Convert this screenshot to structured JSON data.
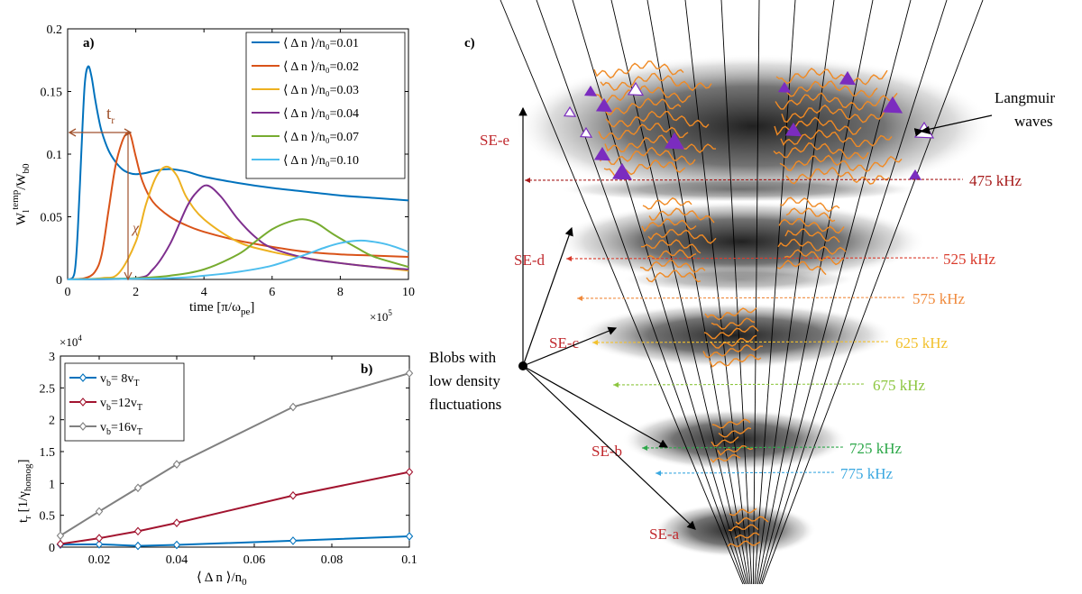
{
  "chart_data": [
    {
      "panel_label": "a)",
      "type": "line",
      "xlabel": "time [π/ω",
      "xlabel_sub": "pe",
      "xlabel_close": "]",
      "x_multiplier": "×10",
      "x_multiplier_exp": "5",
      "ylabel_main": "W",
      "ylabel_sub": "l",
      "ylabel_sup": "temp",
      "ylabel_den": "/W",
      "ylabel_den_sub": "b0",
      "xlim": [
        0,
        10
      ],
      "ylim": [
        0,
        0.2
      ],
      "xticks": [
        0,
        2,
        4,
        6,
        8,
        10
      ],
      "yticks": [
        0,
        0.05,
        0.1,
        0.15,
        0.2
      ],
      "ytick_labels": [
        "0",
        "0.05",
        "0.1",
        "0.15",
        "0.2"
      ],
      "annotation_tr": "t",
      "annotation_tr_sub": "r",
      "annotation_chi": "χ",
      "series": [
        {
          "name": "⟨ Δ n ⟩/n₀=0.01",
          "color": "#0072BD",
          "x": [
            0,
            0.2,
            0.3,
            0.4,
            0.5,
            0.6,
            0.7,
            0.8,
            0.9,
            1.0,
            1.2,
            1.4,
            1.6,
            1.8,
            2.0,
            2.3,
            2.6,
            3.0,
            3.5,
            4,
            5,
            6,
            7,
            8,
            9,
            10
          ],
          "y": [
            0,
            0.005,
            0.04,
            0.1,
            0.155,
            0.17,
            0.162,
            0.145,
            0.13,
            0.118,
            0.103,
            0.094,
            0.088,
            0.085,
            0.084,
            0.085,
            0.087,
            0.088,
            0.086,
            0.082,
            0.077,
            0.073,
            0.07,
            0.067,
            0.065,
            0.063
          ]
        },
        {
          "name": "⟨ Δ n ⟩/n₀=0.02",
          "color": "#D95319",
          "x": [
            0,
            0.5,
            0.8,
            1.0,
            1.2,
            1.4,
            1.6,
            1.75,
            1.85,
            2.0,
            2.2,
            2.5,
            3,
            3.5,
            4,
            5,
            6,
            7,
            8,
            9,
            10
          ],
          "y": [
            0,
            0.001,
            0.006,
            0.02,
            0.055,
            0.09,
            0.11,
            0.117,
            0.115,
            0.098,
            0.078,
            0.062,
            0.05,
            0.043,
            0.038,
            0.031,
            0.026,
            0.022,
            0.02,
            0.019,
            0.018
          ]
        },
        {
          "name": "⟨ Δ n ⟩/n₀=0.03",
          "color": "#EDB120",
          "x": [
            0,
            1.0,
            1.5,
            2.0,
            2.3,
            2.6,
            2.9,
            3.2,
            3.5,
            4,
            5,
            6,
            7,
            8,
            9,
            10
          ],
          "y": [
            0,
            0.001,
            0.005,
            0.03,
            0.06,
            0.082,
            0.09,
            0.083,
            0.065,
            0.048,
            0.03,
            0.022,
            0.017,
            0.013,
            0.01,
            0.007
          ]
        },
        {
          "name": "⟨ Δ n ⟩/n₀=0.04",
          "color": "#7E2F8E",
          "x": [
            0,
            2.0,
            2.5,
            3.0,
            3.5,
            3.8,
            4.1,
            4.5,
            5,
            5.5,
            6,
            7,
            8,
            9,
            10
          ],
          "y": [
            0,
            0.001,
            0.008,
            0.028,
            0.058,
            0.07,
            0.075,
            0.066,
            0.048,
            0.034,
            0.025,
            0.017,
            0.013,
            0.01,
            0.008
          ]
        },
        {
          "name": "⟨ Δ n ⟩/n₀=0.07",
          "color": "#77AC30",
          "x": [
            0,
            2,
            3,
            4,
            5,
            5.5,
            6,
            6.5,
            6.9,
            7.3,
            7.8,
            8.5,
            9,
            10
          ],
          "y": [
            0,
            0.001,
            0.003,
            0.008,
            0.02,
            0.03,
            0.04,
            0.046,
            0.048,
            0.045,
            0.036,
            0.025,
            0.018,
            0.01
          ]
        },
        {
          "name": "⟨ Δ n ⟩/n₀=0.10",
          "color": "#4DBEEE",
          "x": [
            0,
            3,
            4,
            5,
            6,
            7,
            7.5,
            8,
            8.6,
            9.2,
            9.6,
            10
          ],
          "y": [
            0,
            0.001,
            0.003,
            0.006,
            0.011,
            0.02,
            0.025,
            0.029,
            0.031,
            0.029,
            0.026,
            0.022
          ]
        }
      ]
    },
    {
      "panel_label": "b)",
      "type": "line",
      "xlabel": "⟨ Δ n ⟩/n",
      "xlabel_sub": "0",
      "ylabel_main": "t",
      "ylabel_sub": "r",
      "ylabel_rest": " [1/γ",
      "ylabel_rest_sub": "homog",
      "ylabel_close": "]",
      "y_multiplier": "×10",
      "y_multiplier_exp": "4",
      "xlim": [
        0.01,
        0.1
      ],
      "ylim": [
        0,
        30000
      ],
      "xticks": [
        0.02,
        0.04,
        0.06,
        0.08,
        0.1
      ],
      "xtick_labels": [
        "0.02",
        "0.04",
        "0.06",
        "0.08",
        "0.1"
      ],
      "yticks": [
        0,
        5000,
        10000,
        15000,
        20000,
        25000,
        30000
      ],
      "ytick_labels": [
        "0",
        "0.5",
        "1",
        "1.5",
        "2",
        "2.5",
        "3"
      ],
      "series": [
        {
          "name": "v",
          "name_sub": "b",
          "name_rest": "=  8v",
          "name_rest_sub": "T",
          "color": "#0072BD",
          "x": [
            0.01,
            0.02,
            0.03,
            0.04,
            0.07,
            0.1
          ],
          "y": [
            400,
            450,
            200,
            350,
            1000,
            1700
          ]
        },
        {
          "name": "v",
          "name_sub": "b",
          "name_rest": "=12v",
          "name_rest_sub": "T",
          "color": "#A2142F",
          "x": [
            0.01,
            0.02,
            0.03,
            0.04,
            0.07,
            0.1
          ],
          "y": [
            500,
            1400,
            2500,
            3800,
            8100,
            11800
          ]
        },
        {
          "name": "v",
          "name_sub": "b",
          "name_rest": "=16v",
          "name_rest_sub": "T",
          "color": "#808080",
          "x": [
            0.01,
            0.02,
            0.03,
            0.04,
            0.07,
            0.1
          ],
          "y": [
            1800,
            5600,
            9300,
            13000,
            22000,
            27300
          ]
        }
      ]
    }
  ],
  "diagram_c": {
    "panel_label": "c)",
    "blob_caption": [
      "Blobs with",
      "low density",
      "fluctuations"
    ],
    "langmuir_label": [
      "Langmuir",
      "waves"
    ],
    "sources": [
      "SE-e",
      "SE-d",
      "SE-c",
      "SE-b",
      "SE-a"
    ],
    "source_color": "#C0282D",
    "frequencies": [
      {
        "label": "475 kHz",
        "color": "#A61B1B"
      },
      {
        "label": "525 kHz",
        "color": "#D93A2B"
      },
      {
        "label": "575 kHz",
        "color": "#F08A3C"
      },
      {
        "label": "625 kHz",
        "color": "#F2C12E"
      },
      {
        "label": "675 kHz",
        "color": "#8CC63F"
      },
      {
        "label": "725 kHz",
        "color": "#2EA84A"
      },
      {
        "label": "775 kHz",
        "color": "#3BA8E0"
      }
    ]
  }
}
